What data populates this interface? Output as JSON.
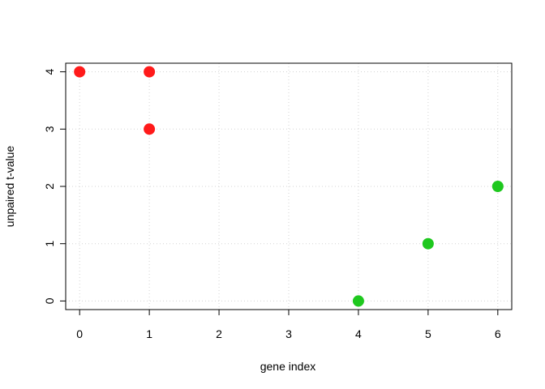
{
  "chart_data": {
    "type": "scatter",
    "title": "",
    "xlabel": "gene index",
    "ylabel": "unpaired t-value",
    "xlim": [
      -0.2,
      6.2
    ],
    "ylim": [
      -0.15,
      4.15
    ],
    "xticks": [
      "0",
      "1",
      "2",
      "3",
      "4",
      "5",
      "6"
    ],
    "yticks": [
      "0",
      "1",
      "2",
      "3",
      "4"
    ],
    "grid": true,
    "grid_style": "dotted",
    "series": [
      {
        "color": "#ff1a1a",
        "points": [
          {
            "x": 0,
            "y": 4
          },
          {
            "x": 1,
            "y": 4
          },
          {
            "x": 1,
            "y": 3
          }
        ]
      },
      {
        "color": "#1ec81e",
        "points": [
          {
            "x": 4,
            "y": 0
          },
          {
            "x": 5,
            "y": 1
          },
          {
            "x": 6,
            "y": 2
          }
        ]
      }
    ]
  }
}
